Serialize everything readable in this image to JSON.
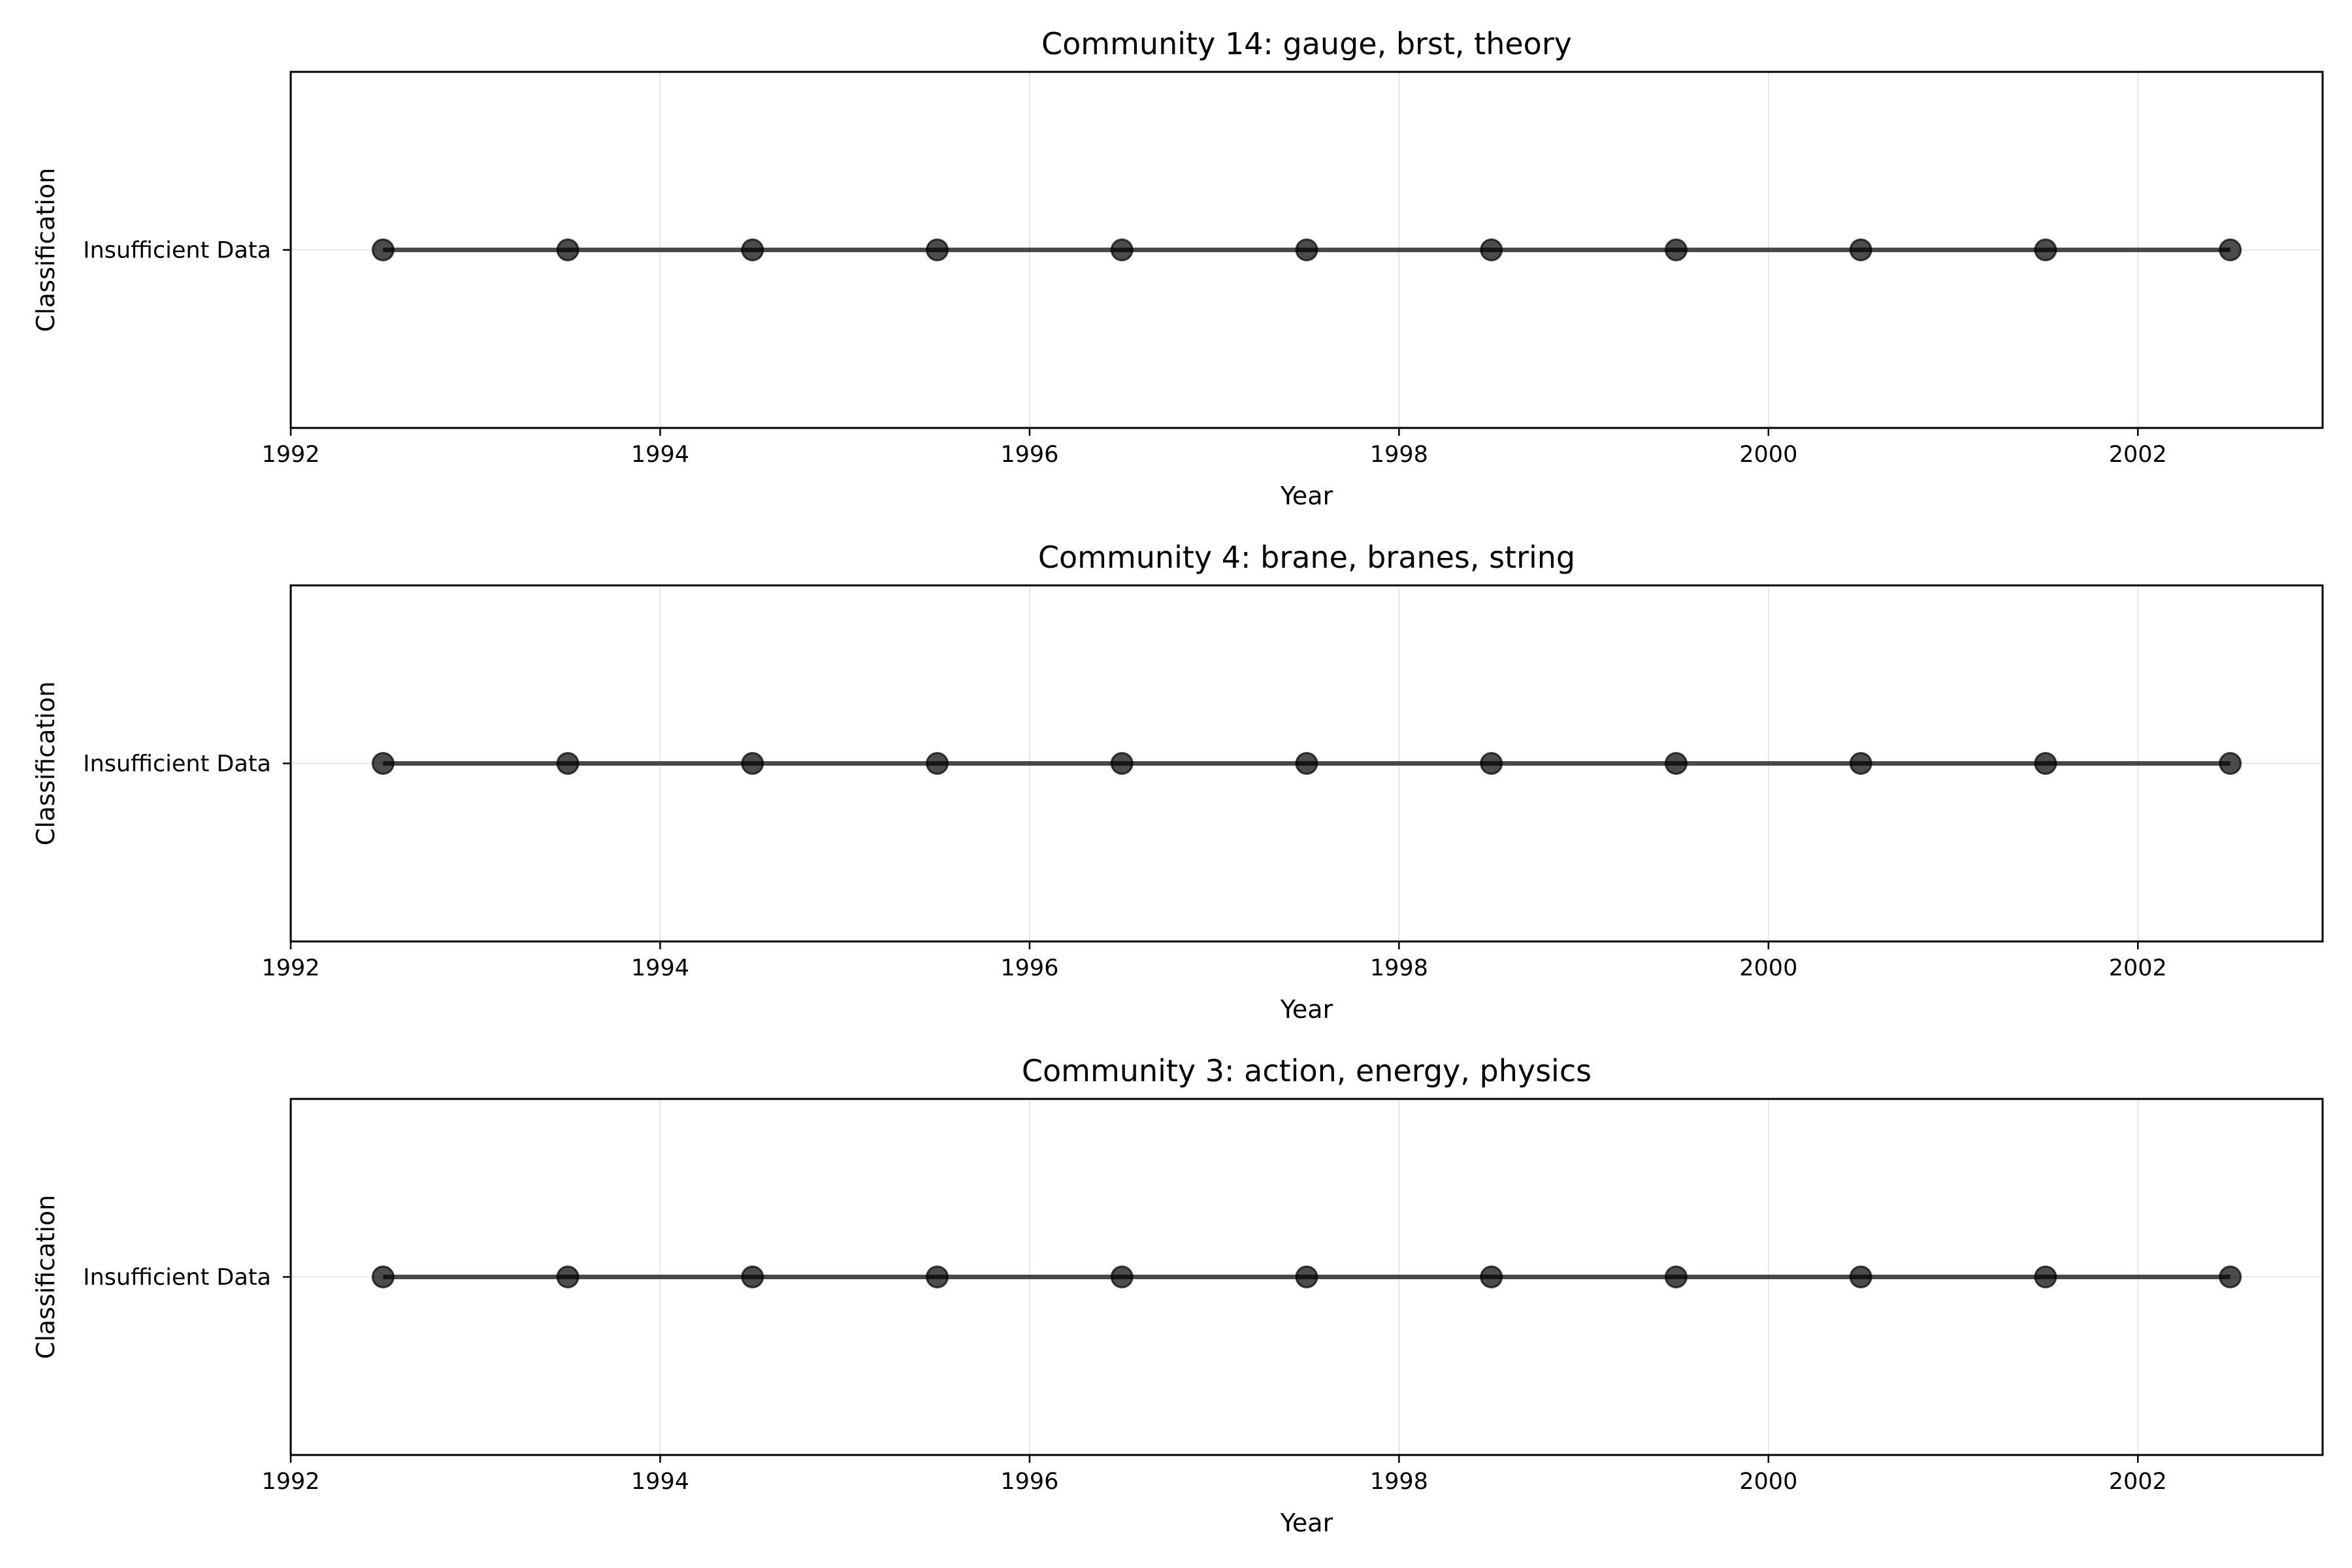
{
  "chart_data": [
    {
      "type": "line",
      "title": "Community 14: gauge, brst, theory",
      "xlabel": "Year",
      "ylabel": "Classification",
      "xlim": [
        1992,
        2003
      ],
      "x_ticks": [
        "1992",
        "1994",
        "1996",
        "1998",
        "2000",
        "2002"
      ],
      "y_categories": [
        "Insufficient Data"
      ],
      "grid": true,
      "x": [
        1992.5,
        1993.5,
        1994.5,
        1995.5,
        1996.5,
        1997.5,
        1998.5,
        1999.5,
        2000.5,
        2001.5,
        2002.5
      ],
      "y": [
        "Insufficient Data",
        "Insufficient Data",
        "Insufficient Data",
        "Insufficient Data",
        "Insufficient Data",
        "Insufficient Data",
        "Insufficient Data",
        "Insufficient Data",
        "Insufficient Data",
        "Insufficient Data",
        "Insufficient Data"
      ]
    },
    {
      "type": "line",
      "title": "Community 4: brane, branes, string",
      "xlabel": "Year",
      "ylabel": "Classification",
      "xlim": [
        1992,
        2003
      ],
      "x_ticks": [
        "1992",
        "1994",
        "1996",
        "1998",
        "2000",
        "2002"
      ],
      "y_categories": [
        "Insufficient Data"
      ],
      "grid": true,
      "x": [
        1992.5,
        1993.5,
        1994.5,
        1995.5,
        1996.5,
        1997.5,
        1998.5,
        1999.5,
        2000.5,
        2001.5,
        2002.5
      ],
      "y": [
        "Insufficient Data",
        "Insufficient Data",
        "Insufficient Data",
        "Insufficient Data",
        "Insufficient Data",
        "Insufficient Data",
        "Insufficient Data",
        "Insufficient Data",
        "Insufficient Data",
        "Insufficient Data",
        "Insufficient Data"
      ]
    },
    {
      "type": "line",
      "title": "Community 3: action, energy, physics",
      "xlabel": "Year",
      "ylabel": "Classification",
      "xlim": [
        1992,
        2003
      ],
      "x_ticks": [
        "1992",
        "1994",
        "1996",
        "1998",
        "2000",
        "2002"
      ],
      "y_categories": [
        "Insufficient Data"
      ],
      "grid": true,
      "x": [
        1992.5,
        1993.5,
        1994.5,
        1995.5,
        1996.5,
        1997.5,
        1998.5,
        1999.5,
        2000.5,
        2001.5,
        2002.5
      ],
      "y": [
        "Insufficient Data",
        "Insufficient Data",
        "Insufficient Data",
        "Insufficient Data",
        "Insufficient Data",
        "Insufficient Data",
        "Insufficient Data",
        "Insufficient Data",
        "Insufficient Data",
        "Insufficient Data",
        "Insufficient Data"
      ]
    }
  ]
}
